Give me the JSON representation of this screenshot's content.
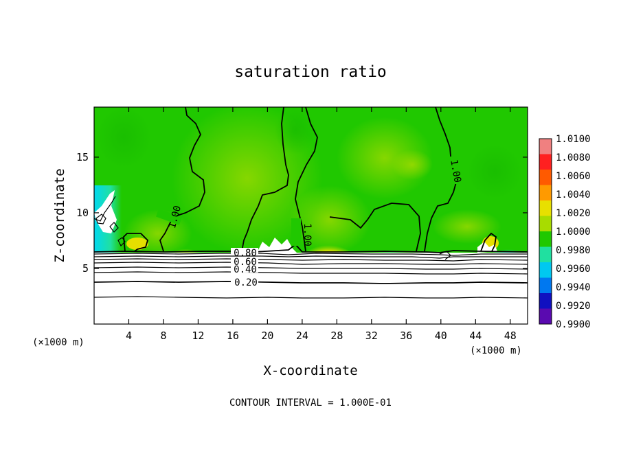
{
  "chart_data": {
    "type": "heatmap",
    "title": "saturation ratio",
    "xlabel": "X-coordinate",
    "ylabel": "Z-coordinate",
    "x_unit_left": "(×1000 m)",
    "x_unit_right": "(×1000 m)",
    "xlim": [
      0,
      50
    ],
    "ylim": [
      0,
      19.5
    ],
    "x_ticks": [
      4,
      8,
      12,
      16,
      20,
      24,
      28,
      32,
      36,
      40,
      44,
      48
    ],
    "y_ticks": [
      5,
      10,
      15
    ],
    "x_tick_labels": [
      "4",
      "8",
      "12",
      "16",
      "20",
      "24",
      "28",
      "32",
      "36",
      "40",
      "44",
      "48"
    ],
    "y_tick_labels": [
      "5",
      "10",
      "15"
    ],
    "footer": "CONTOUR INTERVAL = 1.000E-01",
    "colorbar": {
      "levels": [
        1.01,
        1.008,
        1.006,
        1.004,
        1.002,
        1.0,
        0.998,
        0.996,
        0.994,
        0.992,
        0.99
      ],
      "labels": [
        "1.0100",
        "1.0080",
        "1.0060",
        "1.0040",
        "1.0020",
        "1.0000",
        "0.9980",
        "0.9960",
        "0.9940",
        "0.9920",
        "0.9900"
      ],
      "colors": [
        "#f08080",
        "#ff2020",
        "#ff5a00",
        "#ff9a00",
        "#e8e000",
        "#a8dc00",
        "#20c800",
        "#20e0a0",
        "#00c8f0",
        "#0078f0",
        "#1010c0",
        "#5a0ab0"
      ]
    },
    "contour_labels": [
      {
        "text": "1.00",
        "x": 9.3,
        "z": 10.0
      },
      {
        "text": "1.00",
        "x": 23.7,
        "z": 8.4
      },
      {
        "text": "1.00",
        "x": 41.2,
        "z": 14.0
      },
      {
        "text": "0.80",
        "x": 17.5,
        "z": 6.6
      },
      {
        "text": "0.60",
        "x": 17.5,
        "z": 5.9
      },
      {
        "text": "0.40",
        "x": 17.5,
        "z": 5.0
      },
      {
        "text": "0.20",
        "x": 17.5,
        "z": 3.8
      }
    ],
    "lower_contours": [
      {
        "z": 6.75,
        "level": "0.90"
      },
      {
        "z": 6.5,
        "level": "0.80"
      },
      {
        "z": 6.15,
        "level": "0.70"
      },
      {
        "z": 5.75,
        "level": "0.60"
      },
      {
        "z": 5.3,
        "level": "0.50"
      },
      {
        "z": 4.85,
        "level": "0.40"
      },
      {
        "z": 4.35,
        "level": "0.30"
      },
      {
        "z": 3.8,
        "level": "0.20"
      },
      {
        "z": 2.4,
        "level": "0.10"
      }
    ]
  }
}
